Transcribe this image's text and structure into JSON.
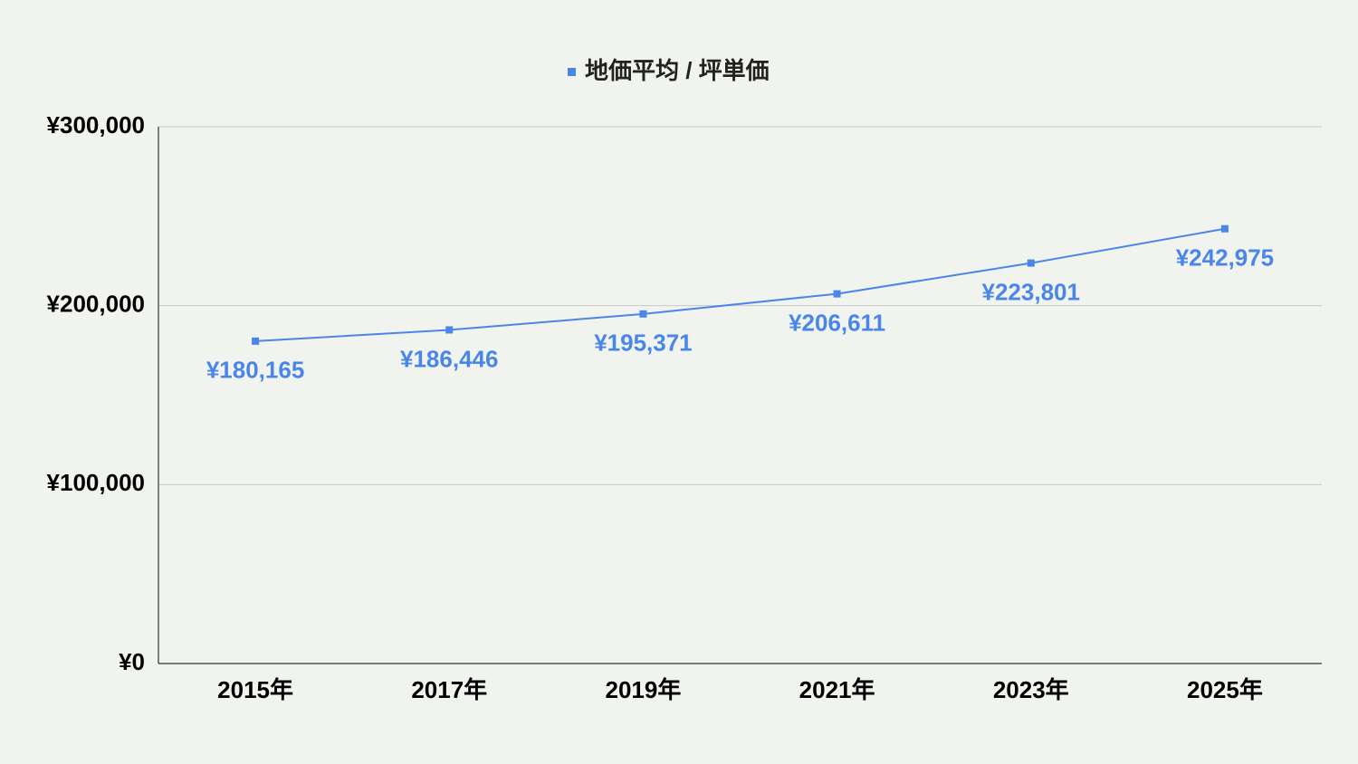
{
  "chart_data": {
    "type": "line",
    "categories": [
      "2015年",
      "2017年",
      "2019年",
      "2021年",
      "2023年",
      "2025年"
    ],
    "series": [
      {
        "name": "地価平均 / 坪単価",
        "color": "#4a86e8",
        "values": [
          180165,
          186446,
          195371,
          206611,
          223801,
          242975
        ],
        "value_labels": [
          "¥180,165",
          "¥186,446",
          "¥195,371",
          "¥206,611",
          "¥223,801",
          "¥242,975"
        ]
      }
    ],
    "ylim": [
      0,
      300000
    ],
    "yticks": [
      {
        "value": 0,
        "label": "¥0"
      },
      {
        "value": 100000,
        "label": "¥100,000"
      },
      {
        "value": 200000,
        "label": "¥200,000"
      },
      {
        "value": 300000,
        "label": "¥300,000"
      }
    ],
    "grid": true,
    "legend": "top"
  }
}
